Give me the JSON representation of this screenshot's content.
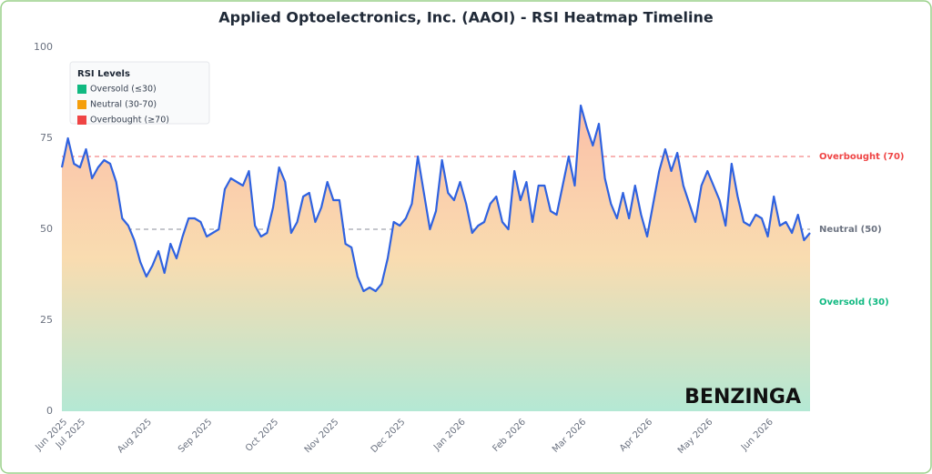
{
  "chart_data": {
    "type": "line",
    "title": "Applied Optoelectronics, Inc. (AAOI) - RSI Heatmap Timeline",
    "watermark": "BENZINGA",
    "categories": [
      "Jun 2025",
      null,
      null,
      "Jul 2025",
      null,
      null,
      null,
      null,
      null,
      null,
      null,
      null,
      null,
      null,
      "Aug 2025",
      null,
      null,
      null,
      null,
      null,
      null,
      null,
      null,
      null,
      "Sep 2025",
      null,
      null,
      null,
      null,
      null,
      null,
      null,
      null,
      null,
      null,
      "Oct 2025",
      null,
      null,
      null,
      null,
      null,
      null,
      null,
      null,
      null,
      "Nov 2025",
      null,
      null,
      null,
      null,
      null,
      null,
      null,
      null,
      null,
      null,
      "Dec 2025",
      null,
      null,
      null,
      null,
      null,
      null,
      null,
      null,
      null,
      "Jan 2026",
      null,
      null,
      null,
      null,
      null,
      null,
      null,
      null,
      null,
      "Feb 2026",
      null,
      null,
      null,
      null,
      null,
      null,
      null,
      null,
      null,
      "Mar 2026",
      null,
      null,
      null,
      null,
      null,
      null,
      null,
      null,
      null,
      null,
      "Apr 2026",
      null,
      null,
      null,
      null,
      null,
      null,
      null,
      null,
      null,
      "May 2026",
      null,
      null,
      null,
      null,
      null,
      null,
      null,
      null,
      null,
      "Jun 2026",
      null,
      null,
      null,
      null,
      null,
      null,
      null
    ],
    "series": [
      {
        "name": "RSI",
        "color": "#2f62e0",
        "values": [
          67,
          75,
          68,
          67,
          72,
          64,
          67,
          69,
          68,
          63,
          53,
          51,
          47,
          41,
          37,
          40,
          44,
          38,
          46,
          42,
          48,
          53,
          53,
          52,
          48,
          49,
          50,
          61,
          64,
          63,
          62,
          66,
          51,
          48,
          49,
          56,
          67,
          63,
          49,
          52,
          59,
          60,
          52,
          56,
          63,
          58,
          58,
          46,
          45,
          37,
          33,
          34,
          33,
          35,
          42,
          52,
          51,
          53,
          57,
          70,
          60,
          50,
          55,
          69,
          60,
          58,
          63,
          57,
          49,
          51,
          52,
          57,
          59,
          52,
          50,
          66,
          58,
          63,
          52,
          62,
          62,
          55,
          54,
          62,
          70,
          62,
          84,
          78,
          73,
          79,
          64,
          57,
          53,
          60,
          53,
          62,
          54,
          48,
          57,
          66,
          72,
          66,
          71,
          62,
          57,
          52,
          62,
          66,
          62,
          58,
          51,
          68,
          59,
          52,
          51,
          54,
          53,
          48,
          59,
          51,
          52,
          49,
          54,
          47,
          49
        ]
      }
    ],
    "ylim": [
      0,
      100
    ],
    "yticks": [
      0,
      25,
      50,
      75,
      100
    ],
    "reference_lines": [
      {
        "value": 70,
        "label": "Overbought (70)",
        "color": "#ef4444"
      },
      {
        "value": 50,
        "label": "Neutral (50)",
        "color": "#6b7280"
      },
      {
        "value": 30,
        "label": "Oversold (30)",
        "color": "#10b981"
      }
    ],
    "legend": {
      "title": "RSI Levels",
      "position": "upper left",
      "items": [
        {
          "label": "Oversold (≤30)",
          "color": "#10b981"
        },
        {
          "label": "Neutral (30-70)",
          "color": "#f59e0b"
        },
        {
          "label": "Overbought (≥70)",
          "color": "#ef4444"
        }
      ]
    }
  }
}
